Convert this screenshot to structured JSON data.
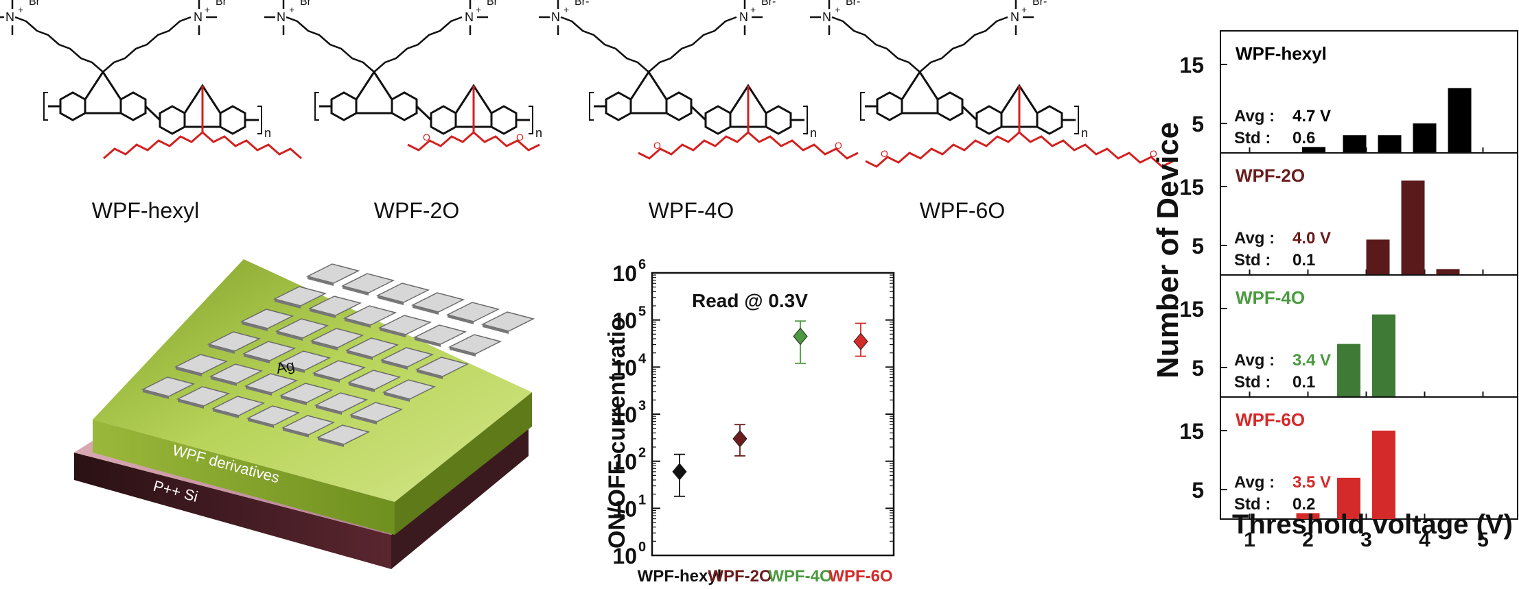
{
  "structures": {
    "labels": [
      "WPF-hexyl",
      "WPF-2O",
      "WPF-4O",
      "WPF-6O"
    ],
    "counterion_a": "Br⁻",
    "counterion_b": "Br-",
    "ammonium": "N",
    "repeat": "n",
    "side_chain_color": "#d42020",
    "main_chain_color": "#111111"
  },
  "device": {
    "electrode_label": "Ag",
    "layer_label": "WPF derivatives",
    "substrate_label": "P++ Si",
    "film_color": "#a8c940",
    "substrate_color": "#b07a86"
  },
  "chart_data": [
    {
      "type": "scatter",
      "annotation": "Read @ 0.3V",
      "ylabel": "ON/OFF current ratio",
      "yscale": "log",
      "ylim": [
        1,
        1000000
      ],
      "ytick_labels": [
        "10",
        "10",
        "10",
        "10",
        "10",
        "10",
        "10"
      ],
      "ytick_exponents": [
        "0",
        "1",
        "2",
        "3",
        "4",
        "5",
        "6"
      ],
      "categories": [
        "WPF-hexyl",
        "WPF-2O",
        "WPF-4O",
        "WPF-6O"
      ],
      "category_colors": [
        "#111111",
        "#6b1c1c",
        "#4a9a3f",
        "#d42a2a"
      ],
      "values": [
        60,
        300,
        45000,
        35000
      ],
      "error_low": [
        18,
        130,
        12000,
        17000
      ],
      "error_high": [
        140,
        600,
        95000,
        85000
      ]
    },
    {
      "type": "bar",
      "xlabel": "Threshold voltage (V)",
      "ylabel": "Number of Device",
      "xlim": [
        0.5,
        5.5
      ],
      "x_ticks": [
        "1",
        "2",
        "3",
        "4",
        "5"
      ],
      "ylim": [
        0,
        20
      ],
      "y_ticks": [
        "5",
        "15"
      ],
      "avg_prefix": "Avg : ",
      "std_prefix": "Std : ",
      "panels": [
        {
          "name": "WPF-hexyl",
          "color": "#000000",
          "label_color": "#000000",
          "avg": "4.7 V",
          "std": "0.6",
          "x": [
            2.1,
            2.8,
            3.4,
            4.0,
            4.6
          ],
          "values": [
            1,
            3,
            3,
            5,
            11
          ]
        },
        {
          "name": "WPF-2O",
          "color": "#5a1a1c",
          "label_color": "#6b1c1c",
          "avg": "4.0 V",
          "std": "0.1",
          "x": [
            3.2,
            3.8,
            4.4
          ],
          "values": [
            6,
            16,
            1
          ]
        },
        {
          "name": "WPF-4O",
          "color": "#3f7a36",
          "label_color": "#4a9a3f",
          "avg": "3.4 V",
          "std": "0.1",
          "x": [
            2.7,
            3.3
          ],
          "values": [
            9,
            14
          ]
        },
        {
          "name": "WPF-6O",
          "color": "#d42a2a",
          "label_color": "#d42a2a",
          "avg": "3.5 V",
          "std": "0.2",
          "x": [
            2.0,
            2.7,
            3.3
          ],
          "values": [
            1,
            7,
            15
          ]
        }
      ]
    }
  ]
}
